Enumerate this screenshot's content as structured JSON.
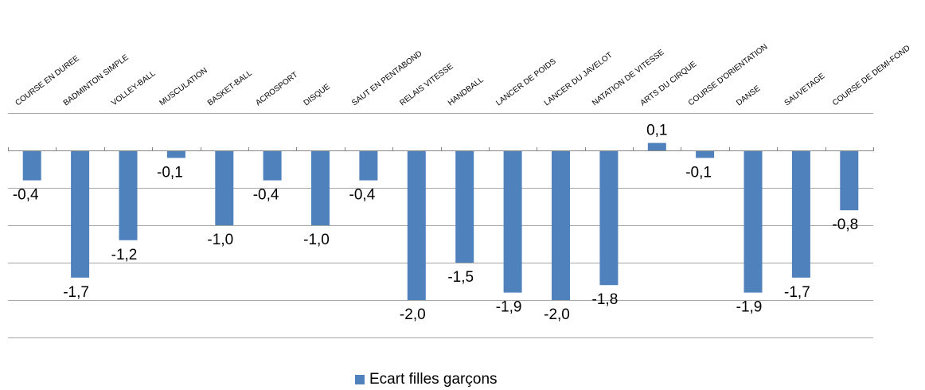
{
  "chart_data": {
    "type": "bar",
    "categories": [
      "COURSE EN DUREE",
      "BADMINTON SIMPLE",
      "VOLLEY-BALL",
      "MUSCULATION",
      "BASKET-BALL",
      "ACROSPORT",
      "DISQUE",
      "SAUT EN PENTABOND",
      "RELAIS VITESSE",
      "HANDBALL",
      "LANCER DE POIDS",
      "LANCER DU JAVELOT",
      "NATATION DE VITESSE",
      "ARTS DU CIRQUE",
      "COURSE D'ORIENTATION",
      "DANSE",
      "SAUVETAGE",
      "COURSE DE DEMI-FOND"
    ],
    "series": [
      {
        "name": "Ecart filles garçons",
        "values": [
          -0.4,
          -1.7,
          -1.2,
          -0.1,
          -1.0,
          -0.4,
          -1.0,
          -0.4,
          -2.0,
          -1.5,
          -1.9,
          -2.0,
          -1.8,
          0.1,
          -0.1,
          -1.9,
          -1.7,
          -0.8
        ],
        "labels": [
          "-0,4",
          "-1,7",
          "-1,2",
          "-0,1",
          "-1,0",
          "-0,4",
          "-1,0",
          "-0,4",
          "-2,0",
          "-1,5",
          "-1,9",
          "-2,0",
          "-1,8",
          "0,1",
          "-0,1",
          "-1,9",
          "-1,7",
          "-0,8"
        ],
        "color": "#4f81bd"
      }
    ],
    "ylim": [
      -2.5,
      0.5
    ],
    "grid": true,
    "legend_position": "bottom",
    "category_axis_position": "top"
  }
}
